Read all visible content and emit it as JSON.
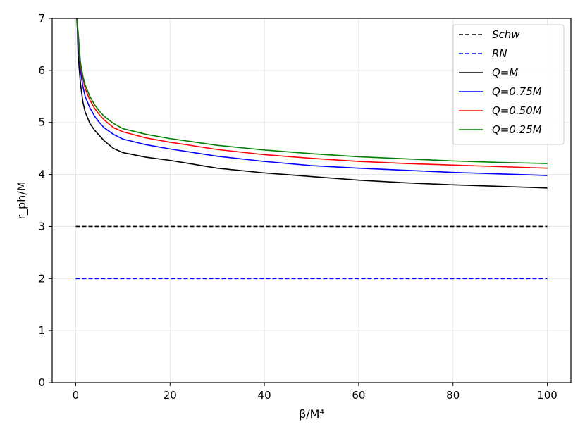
{
  "chart_data": {
    "type": "line",
    "xlabel": "β/M⁴",
    "ylabel": "r_ph/M",
    "xlim": [
      -5,
      105
    ],
    "ylim": [
      0,
      7
    ],
    "x_ticks": [
      0,
      20,
      40,
      60,
      80,
      100
    ],
    "y_ticks": [
      0,
      1,
      2,
      3,
      4,
      5,
      6,
      7
    ],
    "grid": true,
    "legend_position": "top-right",
    "series": [
      {
        "name": "Schw",
        "color": "#000000",
        "dash": true,
        "x": [
          0,
          100
        ],
        "y": [
          3.0,
          3.0
        ]
      },
      {
        "name": "RN",
        "color": "#0000ff",
        "dash": true,
        "x": [
          0,
          100
        ],
        "y": [
          2.0,
          2.0
        ]
      },
      {
        "name": "Q=M",
        "color": "#000000",
        "dash": false,
        "x": [
          0.3,
          0.5,
          1,
          1.5,
          2,
          3,
          4,
          5,
          6,
          8,
          10,
          15,
          20,
          30,
          40,
          50,
          60,
          70,
          80,
          90,
          100
        ],
        "y": [
          7.0,
          6.3,
          5.75,
          5.4,
          5.2,
          4.98,
          4.85,
          4.75,
          4.65,
          4.5,
          4.42,
          4.33,
          4.27,
          4.12,
          4.03,
          3.96,
          3.89,
          3.84,
          3.8,
          3.77,
          3.74
        ]
      },
      {
        "name": "Q=0.75M",
        "color": "#0000ff",
        "dash": false,
        "x": [
          0.2,
          0.5,
          1,
          1.5,
          2,
          3,
          4,
          5,
          6,
          8,
          10,
          15,
          20,
          30,
          40,
          50,
          60,
          70,
          80,
          90,
          100
        ],
        "y": [
          7.0,
          6.6,
          6.0,
          5.7,
          5.5,
          5.28,
          5.12,
          5.0,
          4.9,
          4.77,
          4.68,
          4.57,
          4.49,
          4.35,
          4.25,
          4.17,
          4.12,
          4.08,
          4.04,
          4.01,
          3.98
        ]
      },
      {
        "name": "Q=0.50M",
        "color": "#ff0000",
        "dash": false,
        "x": [
          0.2,
          0.5,
          1,
          1.5,
          2,
          3,
          4,
          5,
          6,
          8,
          10,
          15,
          20,
          30,
          40,
          50,
          60,
          70,
          80,
          90,
          100
        ],
        "y": [
          7.0,
          6.7,
          6.1,
          5.85,
          5.65,
          5.43,
          5.27,
          5.15,
          5.05,
          4.9,
          4.82,
          4.7,
          4.62,
          4.48,
          4.38,
          4.31,
          4.25,
          4.21,
          4.18,
          4.15,
          4.12
        ]
      },
      {
        "name": "Q=0.25M",
        "color": "#008000",
        "dash": false,
        "x": [
          0.2,
          0.5,
          1,
          1.5,
          2,
          3,
          4,
          5,
          6,
          8,
          10,
          15,
          20,
          30,
          40,
          50,
          60,
          70,
          80,
          90,
          100
        ],
        "y": [
          7.0,
          6.75,
          6.15,
          5.9,
          5.72,
          5.5,
          5.34,
          5.22,
          5.12,
          4.98,
          4.88,
          4.77,
          4.69,
          4.56,
          4.47,
          4.4,
          4.34,
          4.3,
          4.26,
          4.23,
          4.21
        ]
      }
    ]
  }
}
